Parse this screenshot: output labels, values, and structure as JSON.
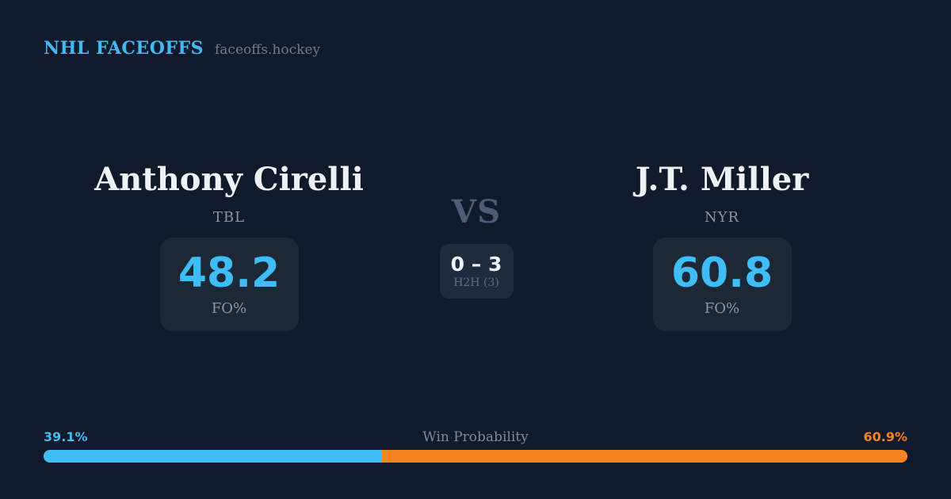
{
  "header": {
    "brand": "NHL FACEOFFS",
    "site": "faceoffs.hockey"
  },
  "matchup": {
    "vs_label": "VS",
    "h2h": {
      "score": "0 – 3",
      "label": "H2H (3)"
    },
    "players": [
      {
        "name": "Anthony Cirelli",
        "team": "TBL",
        "stat_value": "48.2",
        "stat_label": "FO%"
      },
      {
        "name": "J.T. Miller",
        "team": "NYR",
        "stat_value": "60.8",
        "stat_label": "FO%"
      }
    ]
  },
  "win_probability": {
    "label": "Win Probability",
    "left_pct_text": "39.1%",
    "right_pct_text": "60.9%",
    "left_value": 39.1,
    "right_value": 60.9
  },
  "colors": {
    "background": "#111a2b",
    "card_background": "#1d2837",
    "h2h_background": "#1f2b3d",
    "accent_blue": "#3fbdf7",
    "accent_orange": "#f78220",
    "text_primary": "#eef2f7",
    "text_muted": "#8693a8"
  }
}
